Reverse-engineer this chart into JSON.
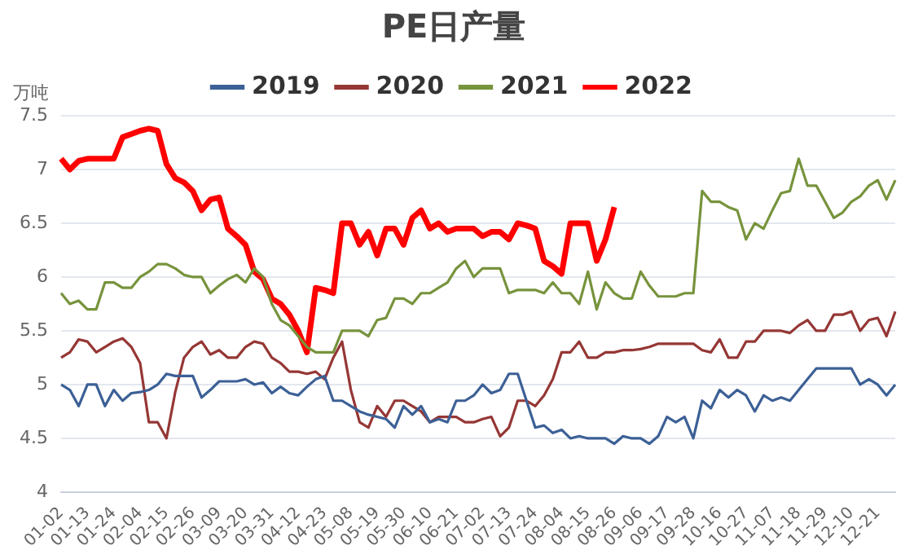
{
  "chart_data": {
    "type": "line",
    "title": "PE日产量",
    "ylabel": "万吨",
    "categories": [
      "01-02",
      null,
      null,
      "01-13",
      null,
      null,
      "01-24",
      null,
      null,
      "02-04",
      null,
      null,
      "02-15",
      null,
      null,
      "02-26",
      null,
      null,
      "03-09",
      null,
      null,
      "03-20",
      null,
      null,
      "03-31",
      null,
      null,
      "04-12",
      null,
      null,
      "04-23",
      null,
      null,
      "05-08",
      null,
      null,
      "05-19",
      null,
      null,
      "05-30",
      null,
      null,
      "06-10",
      null,
      null,
      "06-21",
      null,
      null,
      "07-02",
      null,
      null,
      "07-13",
      null,
      null,
      "07-24",
      null,
      null,
      "08-04",
      null,
      null,
      "08-15",
      null,
      null,
      "08-26",
      null,
      null,
      "09-06",
      null,
      null,
      "09-17",
      null,
      null,
      "09-28",
      null,
      null,
      "10-16",
      null,
      null,
      "10-27",
      null,
      null,
      "11-07",
      null,
      null,
      "11-18",
      null,
      null,
      "11-29",
      null,
      null,
      "12-10",
      null,
      null,
      "12-21",
      null,
      null
    ],
    "series": [
      {
        "name": "2019",
        "color": "#3c6096",
        "values": [
          5.0,
          4.95,
          4.8,
          5.0,
          5.0,
          4.8,
          4.95,
          4.85,
          4.92,
          4.93,
          4.95,
          5.0,
          5.1,
          5.08,
          5.08,
          5.08,
          4.88,
          4.95,
          5.03,
          5.03,
          5.03,
          5.05,
          5.0,
          5.02,
          4.92,
          4.98,
          4.92,
          4.9,
          4.98,
          5.05,
          5.08,
          4.85,
          4.85,
          4.8,
          4.75,
          4.72,
          4.7,
          4.68,
          4.6,
          4.8,
          4.72,
          4.8,
          4.65,
          4.68,
          4.65,
          4.85,
          4.85,
          4.9,
          5.0,
          4.92,
          4.95,
          5.1,
          5.1,
          4.85,
          4.6,
          4.62,
          4.55,
          4.58,
          4.5,
          4.52,
          4.5,
          4.5,
          4.5,
          4.45,
          4.52,
          4.5,
          4.5,
          4.45,
          4.52,
          4.7,
          4.65,
          4.7,
          4.5,
          4.85,
          4.78,
          4.95,
          4.88,
          4.95,
          4.9,
          4.75,
          4.9,
          4.85,
          4.88,
          4.85,
          4.95,
          5.05,
          5.15,
          5.15,
          5.15,
          5.15,
          5.15,
          5.0,
          5.05,
          5.0,
          4.9,
          5.0
        ]
      },
      {
        "name": "2020",
        "color": "#953735",
        "values": [
          5.25,
          5.3,
          5.42,
          5.4,
          5.3,
          5.35,
          5.4,
          5.43,
          5.35,
          5.2,
          4.65,
          4.65,
          4.5,
          4.93,
          5.25,
          5.35,
          5.4,
          5.28,
          5.32,
          5.25,
          5.25,
          5.35,
          5.4,
          5.38,
          5.25,
          5.2,
          5.12,
          5.12,
          5.1,
          5.12,
          5.05,
          5.25,
          5.4,
          4.95,
          4.65,
          4.6,
          4.8,
          4.7,
          4.85,
          4.85,
          4.8,
          4.75,
          4.65,
          4.7,
          4.7,
          4.7,
          4.65,
          4.65,
          4.68,
          4.7,
          4.52,
          4.6,
          4.85,
          4.85,
          4.8,
          4.9,
          5.05,
          5.3,
          5.3,
          5.4,
          5.25,
          5.25,
          5.3,
          5.3,
          5.32,
          5.32,
          5.33,
          5.35,
          5.38,
          5.38,
          5.38,
          5.38,
          5.38,
          5.32,
          5.3,
          5.42,
          5.25,
          5.25,
          5.4,
          5.4,
          5.5,
          5.5,
          5.5,
          5.48,
          5.55,
          5.6,
          5.5,
          5.5,
          5.65,
          5.65,
          5.68,
          5.5,
          5.6,
          5.62,
          5.45,
          5.68
        ]
      },
      {
        "name": "2021",
        "color": "#77933c",
        "values": [
          5.85,
          5.75,
          5.78,
          5.7,
          5.7,
          5.95,
          5.95,
          5.9,
          5.9,
          6.0,
          6.05,
          6.12,
          6.12,
          6.08,
          6.02,
          6.0,
          6.0,
          5.85,
          5.92,
          5.98,
          6.02,
          5.95,
          6.08,
          6.0,
          5.75,
          5.6,
          5.55,
          5.45,
          5.35,
          5.3,
          5.3,
          5.3,
          5.5,
          5.5,
          5.5,
          5.45,
          5.6,
          5.62,
          5.8,
          5.8,
          5.75,
          5.85,
          5.85,
          5.9,
          5.95,
          6.08,
          6.15,
          6.0,
          6.08,
          6.08,
          6.08,
          5.85,
          5.88,
          5.88,
          5.88,
          5.85,
          5.95,
          5.85,
          5.85,
          5.75,
          6.05,
          5.7,
          5.95,
          5.85,
          5.8,
          5.8,
          6.05,
          5.92,
          5.82,
          5.82,
          5.82,
          5.85,
          5.85,
          6.8,
          6.7,
          6.7,
          6.65,
          6.62,
          6.35,
          6.5,
          6.45,
          6.62,
          6.78,
          6.8,
          7.1,
          6.85,
          6.85,
          6.7,
          6.55,
          6.6,
          6.7,
          6.75,
          6.85,
          6.9,
          6.72,
          6.9
        ]
      },
      {
        "name": "2022",
        "color": "#ff0000",
        "values": [
          7.1,
          7.0,
          7.08,
          7.1,
          7.1,
          7.1,
          7.1,
          7.3,
          7.33,
          7.36,
          7.38,
          7.36,
          7.05,
          6.92,
          6.88,
          6.8,
          6.62,
          6.72,
          6.74,
          6.45,
          6.38,
          6.3,
          6.05,
          5.98,
          5.8,
          5.75,
          5.65,
          5.5,
          5.3,
          5.9,
          5.88,
          5.85,
          6.5,
          6.5,
          6.3,
          6.42,
          6.2,
          6.45,
          6.45,
          6.3,
          6.55,
          6.62,
          6.45,
          6.5,
          6.42,
          6.45,
          6.45,
          6.45,
          6.38,
          6.42,
          6.42,
          6.35,
          6.5,
          6.48,
          6.45,
          6.15,
          6.1,
          6.03,
          6.5,
          6.5,
          6.5,
          6.15,
          6.35,
          6.65,
          null,
          null,
          null,
          null,
          null,
          null,
          null,
          null,
          null,
          null,
          null,
          null,
          null,
          null,
          null,
          null,
          null,
          null,
          null,
          null,
          null,
          null,
          null,
          null,
          null,
          null,
          null,
          null,
          null,
          null,
          null,
          null
        ]
      }
    ],
    "ylim": [
      4,
      7.5
    ],
    "yticks": [
      4,
      4.5,
      5,
      5.5,
      6,
      6.5,
      7,
      7.5
    ],
    "grid": "y",
    "legend": "top",
    "marker": "none",
    "line_style": "solid"
  }
}
